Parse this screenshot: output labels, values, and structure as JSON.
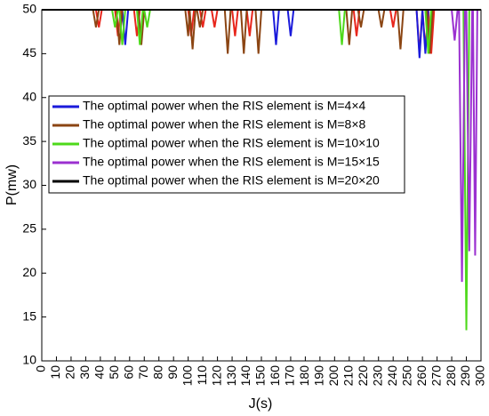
{
  "chart_data": {
    "type": "line",
    "xlabel": "J(s)",
    "ylabel": "P(mw)",
    "xlim": [
      0,
      300
    ],
    "ylim": [
      10,
      50
    ],
    "xticks": [
      0,
      10,
      20,
      30,
      40,
      50,
      60,
      70,
      80,
      90,
      100,
      110,
      120,
      130,
      140,
      150,
      160,
      170,
      180,
      190,
      200,
      210,
      220,
      230,
      240,
      250,
      260,
      270,
      280,
      290,
      300
    ],
    "yticks": [
      10,
      15,
      20,
      25,
      30,
      35,
      40,
      45,
      50
    ],
    "legend": "upper left",
    "series": [
      {
        "color": "#e8261c",
        "x": [
          0,
          37,
          39,
          41,
          50,
          52,
          54,
          63,
          65,
          67,
          100,
          102,
          104,
          108,
          110,
          112,
          116,
          118,
          120,
          130,
          132,
          134,
          140,
          142,
          144,
          213,
          215,
          217,
          238,
          240,
          242,
          256,
          258,
          260,
          262,
          264,
          266,
          268,
          300
        ],
        "values": [
          50,
          50,
          48,
          50,
          50,
          47,
          50,
          50,
          47,
          50,
          50,
          47,
          50,
          50,
          48,
          50,
          50,
          48,
          50,
          50,
          47,
          50,
          50,
          47,
          50,
          50,
          47,
          50,
          50,
          48,
          50,
          50,
          45,
          50,
          45.5,
          50,
          45,
          50,
          50
        ]
      },
      {
        "name": "The optimal power when the RIS element is M=4×4",
        "color": "#1a1adb",
        "x": [
          0,
          55,
          57,
          59,
          158,
          160,
          162,
          168,
          170,
          172,
          256,
          258,
          260,
          262,
          264,
          300
        ],
        "values": [
          50,
          50,
          46,
          50,
          50,
          46,
          50,
          50,
          47,
          50,
          50,
          44.5,
          50,
          45,
          50,
          50
        ]
      },
      {
        "name": "The optimal power when the RIS element is M=8×8",
        "color": "#8b4513",
        "x": [
          0,
          35,
          37,
          39,
          51,
          53,
          55,
          66,
          68,
          70,
          98,
          100,
          101,
          103,
          105,
          106,
          108,
          110,
          125,
          127,
          129,
          136,
          138,
          140,
          146,
          148,
          150,
          208,
          210,
          212,
          216,
          218,
          220,
          230,
          232,
          234,
          243,
          245,
          247,
          263,
          265,
          267,
          300
        ],
        "values": [
          50,
          50,
          48,
          50,
          50,
          46,
          50,
          50,
          46,
          50,
          50,
          47,
          50,
          45.5,
          50,
          50,
          48,
          50,
          50,
          45,
          50,
          50,
          45,
          50,
          50,
          45,
          50,
          50,
          46,
          50,
          50,
          48,
          50,
          50,
          48,
          50,
          50,
          45.5,
          50,
          50,
          45,
          50,
          50
        ]
      },
      {
        "name": "The optimal power when the RIS element is M=10×10",
        "color": "#4dd91a",
        "x": [
          0,
          48,
          50,
          52,
          53,
          55,
          57,
          65,
          67,
          69,
          70,
          72,
          74,
          203,
          205,
          207,
          262,
          264,
          266,
          288,
          290,
          292,
          300
        ],
        "values": [
          50,
          50,
          48,
          50,
          50,
          46,
          50,
          50,
          46,
          50,
          50,
          48,
          50,
          50,
          46,
          50,
          50,
          45,
          50,
          50,
          13.5,
          50,
          50
        ]
      },
      {
        "name": "The optimal power when the RIS element is M=15×15",
        "color": "#9b30d0",
        "x": [
          0,
          280,
          282,
          284,
          285,
          287,
          289,
          290,
          292,
          294,
          294.5,
          296,
          297.5,
          300
        ],
        "values": [
          50,
          50,
          46.5,
          50,
          50,
          19,
          50,
          50,
          22.5,
          50,
          50,
          22,
          50,
          50
        ]
      },
      {
        "name": "The optimal power when the RIS element is M=20×20",
        "color": "#000000",
        "x": [
          0,
          300
        ],
        "values": [
          50,
          50
        ]
      }
    ]
  }
}
